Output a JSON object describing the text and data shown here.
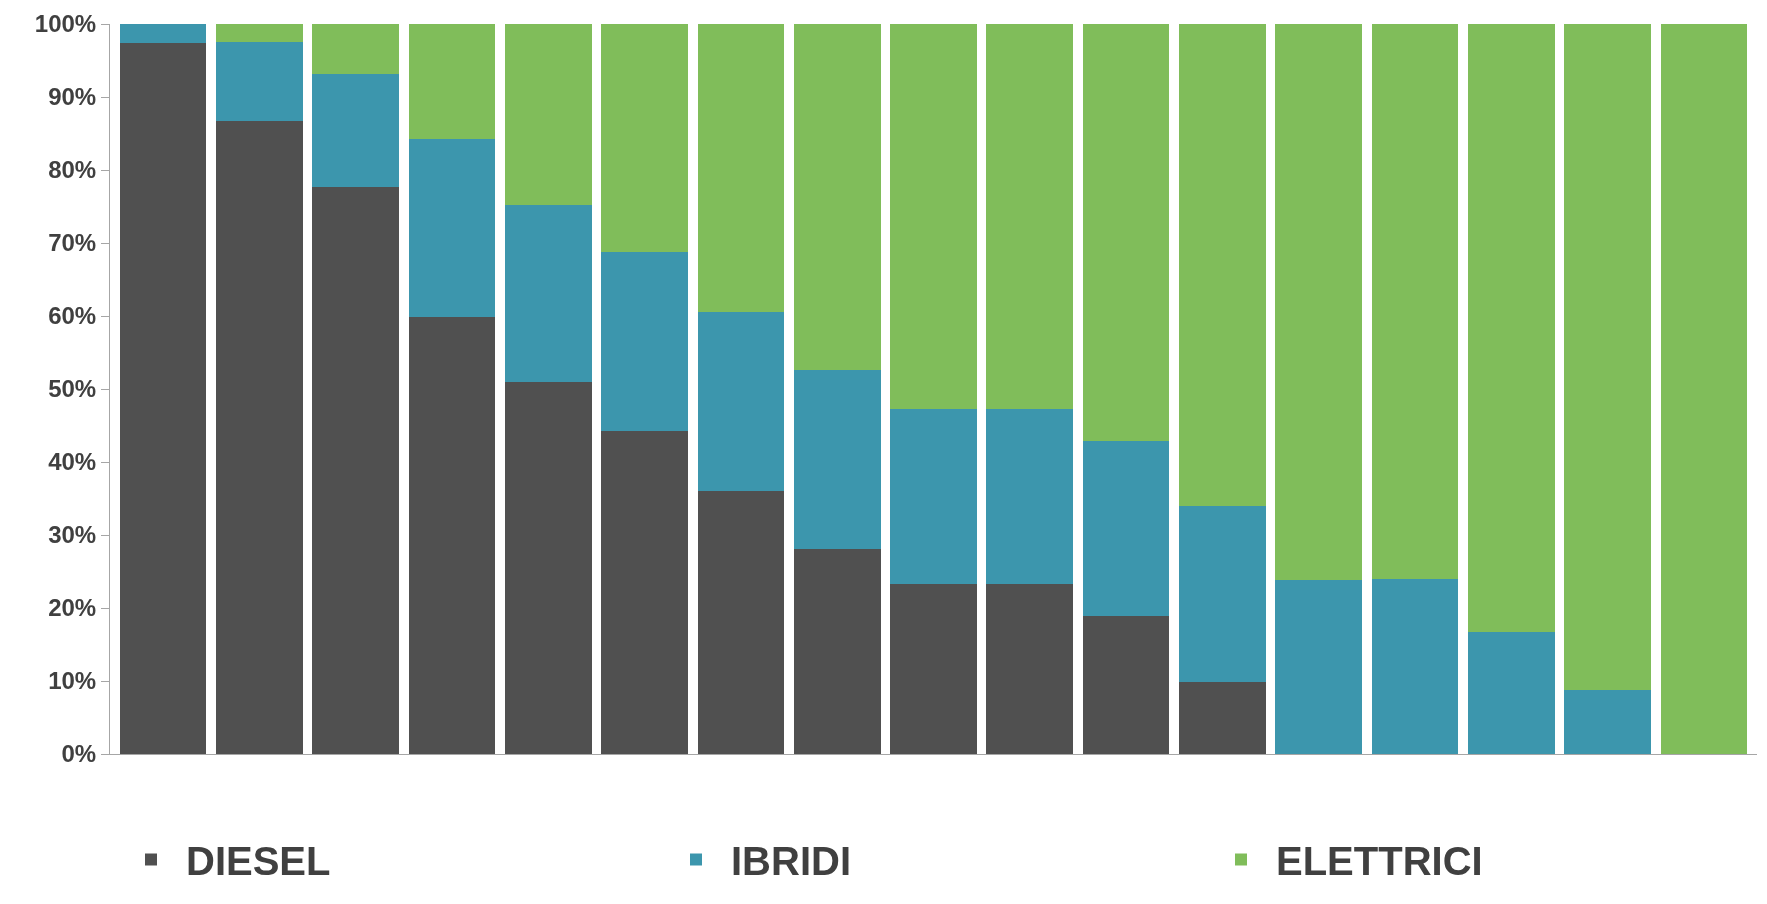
{
  "chart_data": {
    "type": "bar",
    "stacked": true,
    "categories": [
      null,
      null,
      null,
      null,
      null,
      null,
      null,
      null,
      null,
      null,
      null,
      null,
      null,
      null,
      null,
      null,
      null
    ],
    "series": [
      {
        "name": "DIESEL",
        "color": "#505050",
        "values": [
          97.4,
          86.7,
          77.7,
          59.8,
          51.0,
          44.2,
          36.0,
          28.1,
          23.3,
          23.3,
          18.9,
          9.8,
          0,
          0,
          0,
          0,
          0
        ]
      },
      {
        "name": "IBRIDI",
        "color": "#3c96ad",
        "values": [
          2.6,
          10.8,
          15.5,
          24.4,
          24.2,
          24.5,
          24.6,
          24.5,
          24.0,
          24.0,
          24.0,
          24.2,
          23.9,
          24.0,
          16.7,
          8.7,
          0
        ]
      },
      {
        "name": "ELETTRICI",
        "color": "#80bd5a",
        "values": [
          0,
          2.5,
          6.8,
          15.8,
          24.8,
          31.3,
          39.4,
          47.4,
          52.7,
          52.7,
          57.1,
          66.0,
          76.1,
          76.0,
          83.3,
          91.3,
          100
        ]
      }
    ],
    "ylim": [
      0,
      100
    ],
    "yticks": [
      {
        "value": 0,
        "label": "0%"
      },
      {
        "value": 10,
        "label": "10%"
      },
      {
        "value": 20,
        "label": "20%"
      },
      {
        "value": 30,
        "label": "30%"
      },
      {
        "value": 40,
        "label": "40%"
      },
      {
        "value": 50,
        "label": "50%"
      },
      {
        "value": 60,
        "label": "60%"
      },
      {
        "value": 70,
        "label": "70%"
      },
      {
        "value": 80,
        "label": "80%"
      },
      {
        "value": 90,
        "label": "90%"
      },
      {
        "value": 100,
        "label": "100%"
      }
    ],
    "legend": "bottom"
  }
}
